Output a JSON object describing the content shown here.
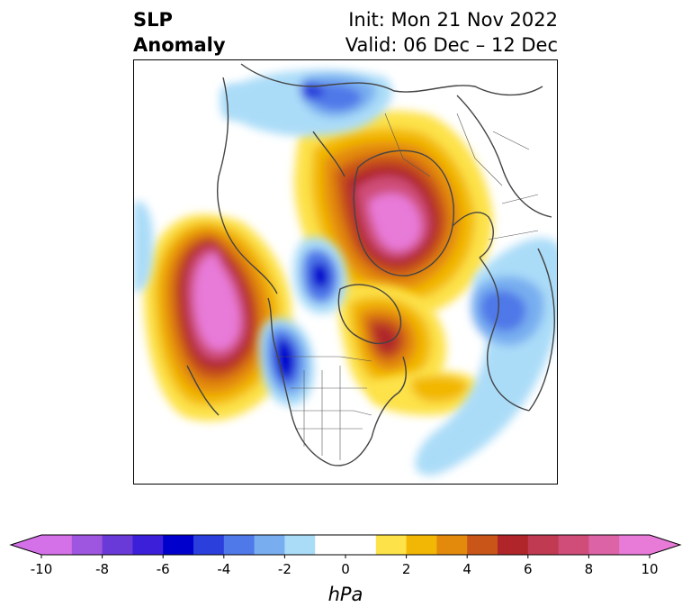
{
  "title": {
    "left_line1": "SLP",
    "left_line2": "Anomaly",
    "right_line1": "Init: Mon 21 Nov 2022",
    "right_line2": "Valid: 06 Dec – 12 Dec"
  },
  "colorbar": {
    "unit": "hPa",
    "ticks": [
      -10,
      -8,
      -6,
      -4,
      -2,
      0,
      2,
      4,
      6,
      8,
      10
    ],
    "tick_labels": [
      "-10",
      "-8",
      "-6",
      "-4",
      "-2",
      "0",
      "2",
      "4",
      "6",
      "8",
      "10"
    ],
    "bins": [
      {
        "from": -10,
        "to": -9,
        "color": "#d571e8"
      },
      {
        "from": -9,
        "to": -8,
        "color": "#9e55e0"
      },
      {
        "from": -8,
        "to": -7,
        "color": "#6a3ad8"
      },
      {
        "from": -7,
        "to": -6,
        "color": "#3c1fd9"
      },
      {
        "from": -6,
        "to": -5,
        "color": "#0000cd"
      },
      {
        "from": -5,
        "to": -4,
        "color": "#2a3fdc"
      },
      {
        "from": -4,
        "to": -3,
        "color": "#4f78e8"
      },
      {
        "from": -3,
        "to": -2,
        "color": "#78aef0"
      },
      {
        "from": -2,
        "to": -1,
        "color": "#aadcf8"
      },
      {
        "from": -1,
        "to": 1,
        "color": "#ffffff"
      },
      {
        "from": 1,
        "to": 2,
        "color": "#fde24a"
      },
      {
        "from": 2,
        "to": 3,
        "color": "#f2b705"
      },
      {
        "from": 3,
        "to": 4,
        "color": "#e38a0c"
      },
      {
        "from": 4,
        "to": 5,
        "color": "#c95518"
      },
      {
        "from": 5,
        "to": 6,
        "color": "#b0252a"
      },
      {
        "from": 6,
        "to": 7,
        "color": "#c03a52"
      },
      {
        "from": 7,
        "to": 8,
        "color": "#cf4d78"
      },
      {
        "from": 8,
        "to": 9,
        "color": "#dc64a6"
      },
      {
        "from": 9,
        "to": 10,
        "color": "#e87ad8"
      }
    ],
    "under_color": "#d571e8",
    "over_color": "#e87ad8"
  },
  "map": {
    "projection": "north-polar-stereographic",
    "field": "sea-level-pressure-anomaly"
  }
}
